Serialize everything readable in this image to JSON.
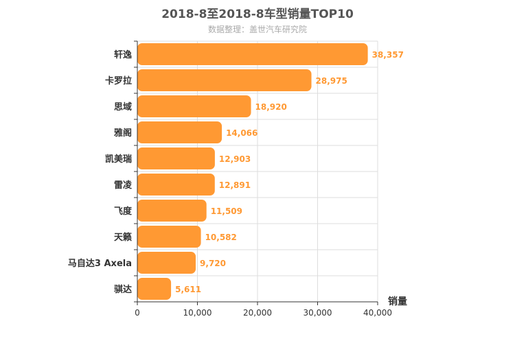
{
  "title": "2018-8至2018-8车型销量TOP10",
  "subtitle": "数据整理：盖世汽车研究院",
  "colors": {
    "bar": "#ff9933",
    "grid": "#dddddd",
    "axis": "#333333",
    "value_label": "#ff9933"
  },
  "chart_data": {
    "type": "bar",
    "orientation": "horizontal",
    "categories": [
      "轩逸",
      "卡罗拉",
      "思域",
      "雅阁",
      "凯美瑞",
      "雷凌",
      "飞度",
      "天籁",
      "马自达3 Axela",
      "骐达"
    ],
    "values": [
      38357,
      28975,
      18920,
      14066,
      12903,
      12891,
      11509,
      10582,
      9720,
      5611
    ],
    "value_labels": [
      "38,357",
      "28,975",
      "18,920",
      "14,066",
      "12,903",
      "12,891",
      "11,509",
      "10,582",
      "9,720",
      "5,611"
    ],
    "xlabel": "销量",
    "ylabel": "",
    "xlim": [
      0,
      40000
    ],
    "xticks": [
      0,
      10000,
      20000,
      30000,
      40000
    ],
    "xtick_labels": [
      "0",
      "10,000",
      "20,000",
      "30,000",
      "40,000"
    ],
    "grid": true
  }
}
